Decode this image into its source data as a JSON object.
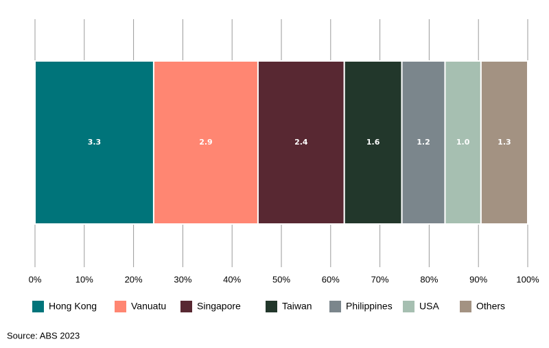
{
  "chart_data": {
    "type": "stacked-percent-bar",
    "series": [
      {
        "name": "Hong Kong",
        "color": "#00747a",
        "values": [
          3.3
        ]
      },
      {
        "name": "Vanuatu",
        "color": "#ff8672",
        "values": [
          2.9
        ]
      },
      {
        "name": "Singapore",
        "color": "#582832",
        "values": [
          2.4
        ]
      },
      {
        "name": "Taiwan",
        "color": "#22372b",
        "values": [
          1.6
        ]
      },
      {
        "name": "Philippines",
        "color": "#7b868c",
        "values": [
          1.2
        ]
      },
      {
        "name": "USA",
        "color": "#a6bfb1",
        "values": [
          1.0
        ],
        "value_labels": [
          "1.0"
        ]
      },
      {
        "name": "Others",
        "color": "#a39282",
        "values": [
          1.3
        ]
      }
    ],
    "xlim": [
      0,
      100
    ],
    "xticks": [
      {
        "value": 0,
        "label": "0%"
      },
      {
        "value": 10,
        "label": "10%"
      },
      {
        "value": 20,
        "label": "20%"
      },
      {
        "value": 30,
        "label": "30%"
      },
      {
        "value": 40,
        "label": "40%"
      },
      {
        "value": 50,
        "label": "50%"
      },
      {
        "value": 60,
        "label": "60%"
      },
      {
        "value": 70,
        "label": "70%"
      },
      {
        "value": 80,
        "label": "80%"
      },
      {
        "value": 90,
        "label": "90%"
      },
      {
        "value": 100,
        "label": "100%"
      }
    ],
    "grid": true,
    "source": "Source: ABS 2023"
  }
}
